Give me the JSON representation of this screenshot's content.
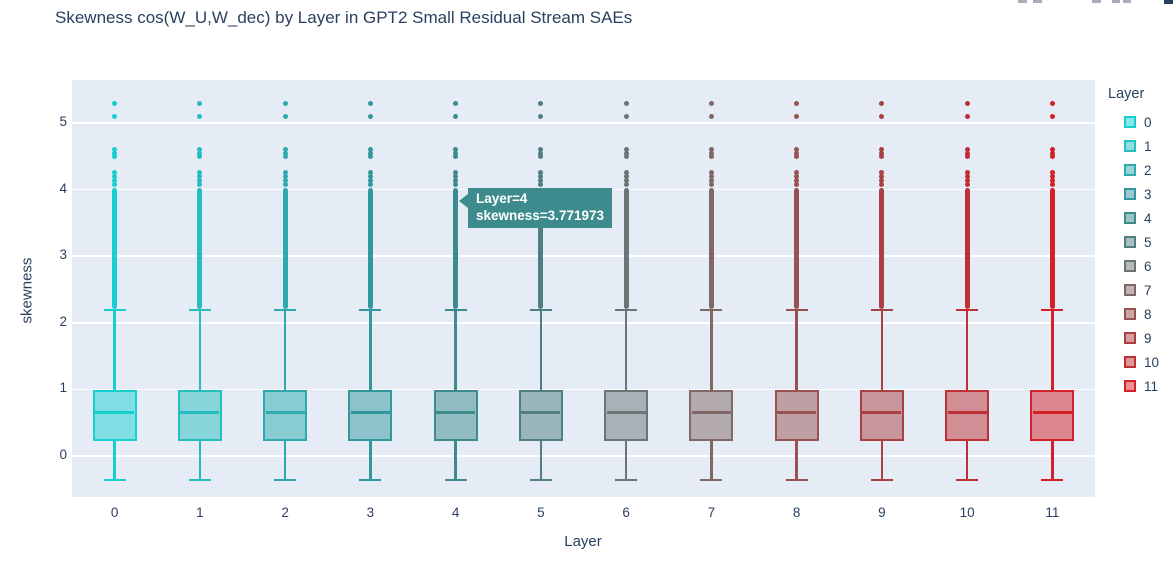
{
  "title": "Skewness cos(W_U,W_dec) by Layer in GPT2 Small Residual Stream SAEs",
  "tooltip": {
    "line1": "Layer=4",
    "line2": "skewness=3.771973",
    "layer": 4,
    "skewness": 3.771973
  },
  "legend": {
    "title": "Layer",
    "entries": [
      "0",
      "1",
      "2",
      "3",
      "4",
      "5",
      "6",
      "7",
      "8",
      "9",
      "10",
      "11"
    ]
  },
  "chart_data": {
    "type": "box",
    "title": "Skewness cos(W_U,W_dec) by Layer in GPT2 Small Residual Stream SAEs",
    "xlabel": "Layer",
    "ylabel": "skewness",
    "categories": [
      0,
      1,
      2,
      3,
      4,
      5,
      6,
      7,
      8,
      9,
      10,
      11
    ],
    "yticks": [
      0,
      1,
      2,
      3,
      4,
      5
    ],
    "ylim": [
      -0.617,
      5.647
    ],
    "grid": true,
    "legend_position": "right",
    "colors": [
      "#17CFCF",
      "#26BDBF",
      "#2EAAAE",
      "#33989D",
      "#3D8B8D",
      "#4F7F81",
      "#6C7576",
      "#806867",
      "#975251",
      "#A94042",
      "#BE3034",
      "#D32127"
    ],
    "box_stats": {
      "q1": 0.225,
      "median": 0.655,
      "q3": 0.99,
      "whisker_low": -0.36,
      "whisker_high": 2.19
    },
    "outliers": {
      "band_min": 2.21,
      "band_max": 4.03,
      "points": [
        4.07,
        4.13,
        4.2,
        4.26,
        4.5,
        4.55,
        4.6,
        5.1,
        5.3
      ]
    },
    "highlighted_point": {
      "layer": 4,
      "skewness": 3.771973
    }
  },
  "colors": {
    "plot_bg": "#e5ecf6",
    "grid": "#ffffff",
    "text": "#2a3f5f",
    "tooltip_bg": "#3D8B8D",
    "tooltip_text": "#ffffff"
  }
}
